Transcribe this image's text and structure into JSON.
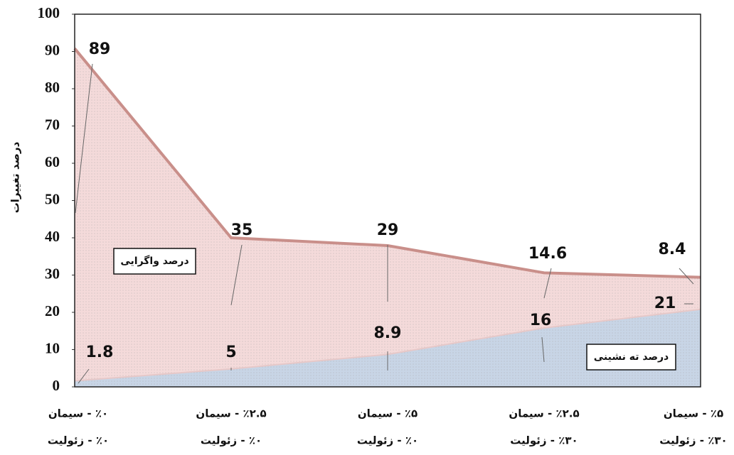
{
  "chart_data": {
    "type": "stacked-area",
    "y_label": "درصد تغییرات",
    "categories": [
      [
        "٪۰ - سیمان",
        "٪۰ - زئولیت"
      ],
      [
        "٪۲.۵ - سیمان",
        "٪۰ - زئولیت"
      ],
      [
        "٪۵ - سیمان",
        "٪۰ - زئولیت"
      ],
      [
        "٪۲.۵ - سیمان",
        "٪۳۰ - زئولیت"
      ],
      [
        "٪۵ - سیمان",
        "٪۳۰ - زئولیت"
      ]
    ],
    "series": [
      {
        "name": "درصد ته نشینی",
        "color": "#c8d5e6",
        "values": [
          1.8,
          5,
          8.9,
          16,
          21
        ]
      },
      {
        "name": "درصد واگرایی",
        "color": "#f4dada",
        "values": [
          89,
          35,
          29,
          14.6,
          8.4
        ]
      }
    ],
    "ylim": [
      0,
      100
    ],
    "yticks": [
      0,
      10,
      20,
      30,
      40,
      50,
      60,
      70,
      80,
      90,
      100
    ]
  }
}
